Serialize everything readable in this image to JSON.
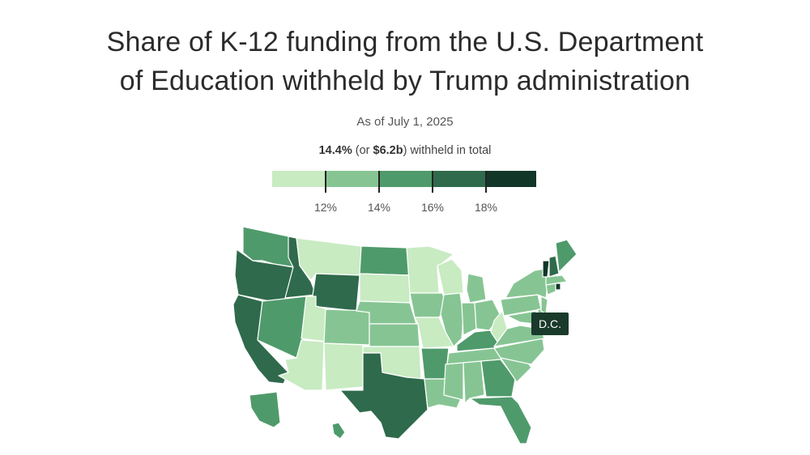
{
  "title_line1": "Share of K-12 funding from the U.S. Department",
  "title_line2": "of Education withheld by Trump administration",
  "subtitle": "As of July 1, 2025",
  "total_note": {
    "pct": "14.4%",
    "mid1": " (or ",
    "amount": "$6.2b",
    "mid2": ") withheld in total"
  },
  "legend": {
    "bins": [
      {
        "color": "#c8ebc2",
        "range": "<12%"
      },
      {
        "color": "#86c593",
        "range": "12–14%"
      },
      {
        "color": "#4f9a6b",
        "range": "14–16%"
      },
      {
        "color": "#2f6a4c",
        "range": "16–18%"
      },
      {
        "color": "#123628",
        "range": ">18%"
      }
    ],
    "ticks": [
      "12%",
      "14%",
      "16%",
      "18%"
    ]
  },
  "dc_label": "D.C.",
  "colors": {
    "c1": "#c8ebc2",
    "c2": "#86c593",
    "c3": "#4f9a6b",
    "c4": "#2f6a4c",
    "c5": "#123628"
  },
  "states": {
    "WA": "c3",
    "OR": "c4",
    "CA": "c4",
    "ID": "c4",
    "NV": "c3",
    "MT": "c1",
    "WY": "c4",
    "UT": "c1",
    "AZ": "c1",
    "CO": "c2",
    "NM": "c1",
    "ND": "c3",
    "SD": "c1",
    "NE": "c2",
    "KS": "c2",
    "OK": "c1",
    "TX": "c4",
    "MN": "c1",
    "IA": "c2",
    "MO": "c1",
    "AR": "c3",
    "LA": "c2",
    "WI": "c1",
    "IL": "c2",
    "MI": "c2",
    "IN": "c2",
    "OH": "c2",
    "KY": "c3",
    "TN": "c2",
    "MS": "c2",
    "AL": "c2",
    "GA": "c3",
    "FL": "c3",
    "SC": "c2",
    "NC": "c2",
    "VA": "c2",
    "WV": "c1",
    "PA": "c2",
    "NY": "c2",
    "ME": "c3",
    "NH": "c4",
    "VT": "c5",
    "MA": "c2",
    "CT": "c2",
    "RI": "c5",
    "NJ": "c2",
    "DE": "c2",
    "MD": "c2",
    "AK": "c3",
    "HI": "c3"
  }
}
